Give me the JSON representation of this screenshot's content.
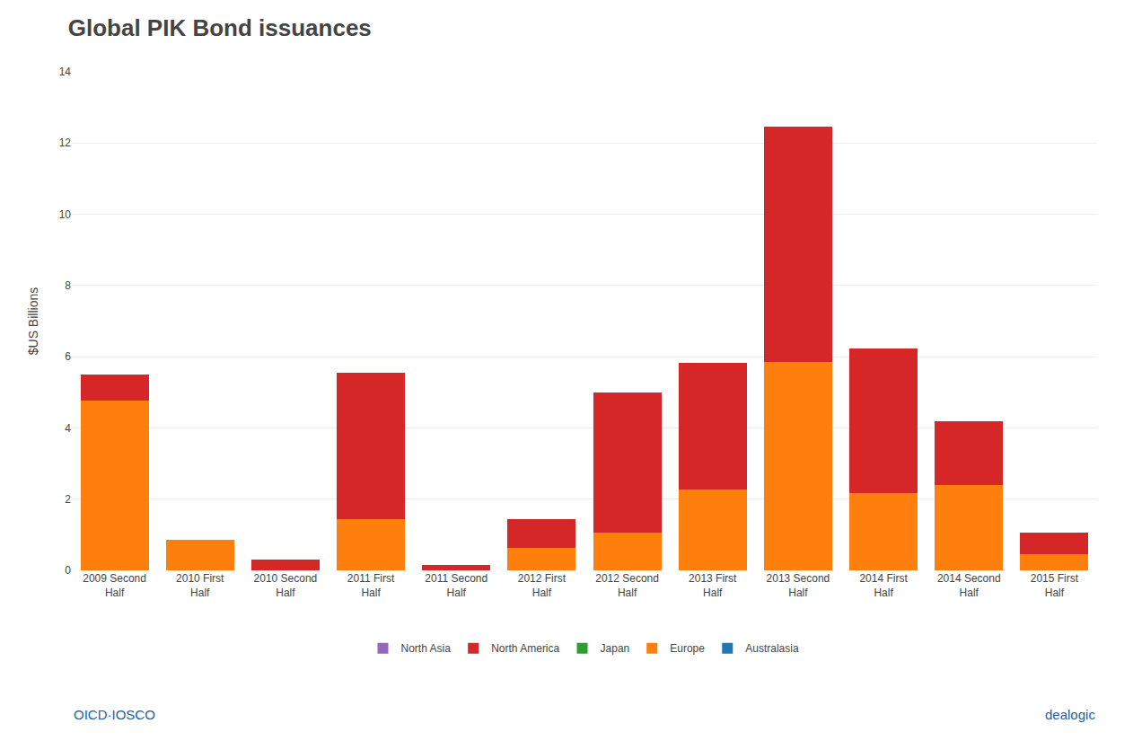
{
  "chart_data": {
    "type": "bar",
    "stacked": true,
    "title": "Global PIK Bond issuances",
    "ylabel": "$US Billions",
    "categories": [
      "2009 Second\nHalf",
      "2010 First\nHalf",
      "2010 Second\nHalf",
      "2011 First\nHalf",
      "2011 Second\nHalf",
      "2012 First\nHalf",
      "2012 Second\nHalf",
      "2013 First\nHalf",
      "2013 Second\nHalf",
      "2014 First\nHalf",
      "2014 Second\nHalf",
      "2015 First\nHalf"
    ],
    "series": [
      {
        "name": "Australasia",
        "values": [
          0.0,
          0.0,
          0.0,
          0.0,
          0.0,
          0.0,
          0.0,
          0.0,
          0.0,
          0.0,
          0.0,
          0.0
        ]
      },
      {
        "name": "Europe",
        "values": [
          4.78,
          0.85,
          0.0,
          1.45,
          0.0,
          0.62,
          1.05,
          2.28,
          5.85,
          2.18,
          2.4,
          0.45
        ]
      },
      {
        "name": "Japan",
        "values": [
          0.0,
          0.0,
          0.0,
          0.0,
          0.0,
          0.0,
          0.0,
          0.0,
          0.0,
          0.0,
          0.0,
          0.0
        ]
      },
      {
        "name": "North America",
        "values": [
          0.72,
          0.0,
          0.3,
          4.1,
          0.15,
          0.82,
          3.95,
          3.55,
          6.6,
          4.05,
          1.8,
          0.62
        ]
      },
      {
        "name": "North Asia",
        "values": [
          0.0,
          0.0,
          0.0,
          0.0,
          0.0,
          0.0,
          0.0,
          0.0,
          0.0,
          0.0,
          0.0,
          0.0
        ]
      }
    ],
    "ylim": [
      0,
      14
    ],
    "yticks": [
      0,
      2,
      4,
      6,
      8,
      10,
      12,
      14
    ],
    "grid": true,
    "legend": "bottom",
    "annotations": [
      "OICD·IOSCO",
      "dealogic"
    ]
  }
}
